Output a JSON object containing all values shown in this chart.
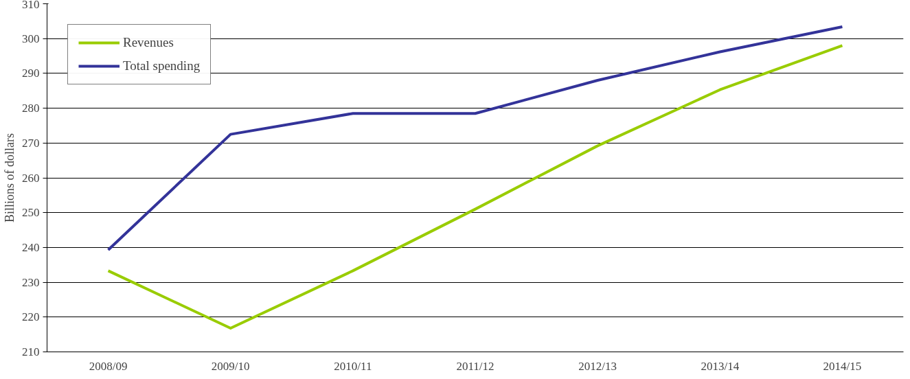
{
  "chart_data": {
    "type": "line",
    "ylabel": "Billions of dollars",
    "categories": [
      "2008/09",
      "2009/10",
      "2010/11",
      "2011/12",
      "2012/13",
      "2013/14",
      "2014/15"
    ],
    "series": [
      {
        "name": "Revenues",
        "color": "#99cc00",
        "values": [
          233.3,
          216.8,
          233.3,
          251,
          269.2,
          285.3,
          298
        ]
      },
      {
        "name": "Total spending",
        "color": "#333399",
        "values": [
          239.3,
          272.5,
          278.5,
          278.5,
          288,
          296.2,
          303.4
        ]
      }
    ],
    "ylim": [
      210,
      310
    ],
    "yticks": [
      210,
      220,
      230,
      240,
      250,
      260,
      270,
      280,
      290,
      300,
      310
    ],
    "grid": "y",
    "legend": "top left",
    "marker": "none",
    "line_style": "solid"
  }
}
